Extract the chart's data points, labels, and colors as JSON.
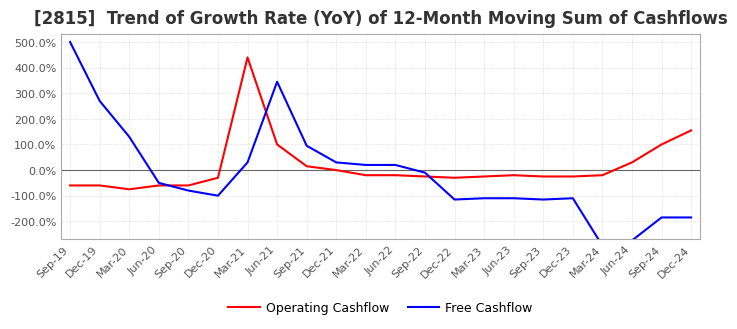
{
  "title": "[2815]  Trend of Growth Rate (YoY) of 12-Month Moving Sum of Cashflows",
  "title_fontsize": 12,
  "ylim": [
    -270,
    530
  ],
  "yticks": [
    -200,
    -100,
    0,
    100,
    200,
    300,
    400,
    500
  ],
  "x_labels": [
    "Sep-19",
    "Dec-19",
    "Mar-20",
    "Jun-20",
    "Sep-20",
    "Dec-20",
    "Mar-21",
    "Jun-21",
    "Sep-21",
    "Dec-21",
    "Mar-22",
    "Jun-22",
    "Sep-22",
    "Dec-22",
    "Mar-23",
    "Jun-23",
    "Sep-23",
    "Dec-23",
    "Mar-24",
    "Jun-24",
    "Sep-24",
    "Dec-24"
  ],
  "operating_cashflow": [
    -60,
    -60,
    -75,
    -60,
    -60,
    -30,
    440,
    100,
    15,
    0,
    -20,
    -20,
    -25,
    -30,
    -25,
    -20,
    -25,
    -25,
    -20,
    30,
    100,
    155
  ],
  "free_cashflow": [
    500,
    270,
    130,
    -50,
    -80,
    -100,
    30,
    345,
    95,
    30,
    20,
    20,
    -10,
    -115,
    -110,
    -110,
    -115,
    -110,
    -295,
    -275,
    -185,
    -185
  ],
  "op_color": "#ff0000",
  "free_color": "#0000ff",
  "grid_color": "#cccccc",
  "background_color": "#ffffff",
  "line_width": 1.5
}
